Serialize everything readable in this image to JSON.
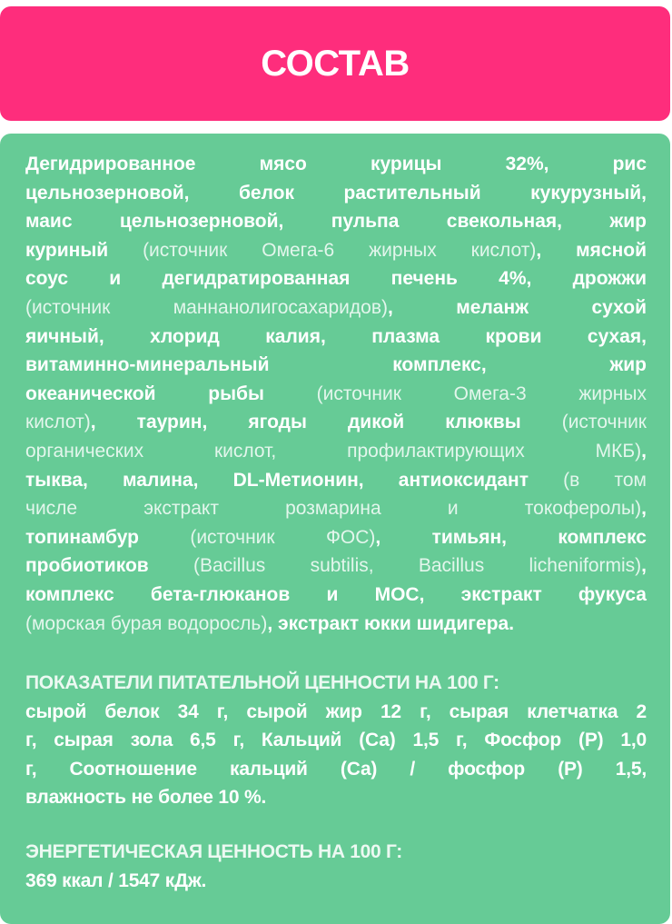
{
  "title": "СОСТАВ",
  "colors": {
    "header_bg": "#FE2D7C",
    "panel_bg": "#66CB96",
    "text": "#FFFFFF"
  },
  "composition_lines": [
    [
      {
        "t": "Дегидрированное мясо курицы 32%, рис",
        "b": true
      }
    ],
    [
      {
        "t": "цельнозерновой, белок растительный кукурузный,",
        "b": true
      }
    ],
    [
      {
        "t": "маис цельнозерновой, пульпа свекольная, жир",
        "b": true
      }
    ],
    [
      {
        "t": "куриный",
        "b": true
      },
      {
        "t": " (источник Омега-6 жирных кислот)",
        "b": false
      },
      {
        "t": ", мясной",
        "b": true
      }
    ],
    [
      {
        "t": "соус и дегидратированная печень 4%, дрожжи",
        "b": true
      }
    ],
    [
      {
        "t": "(источник маннанолигосахаридов)",
        "b": false
      },
      {
        "t": ", меланж сухой",
        "b": true
      }
    ],
    [
      {
        "t": "яичный, хлорид калия, плазма крови сухая,",
        "b": true
      }
    ],
    [
      {
        "t": "витаминно-минеральный комплекс, жир",
        "b": true
      }
    ],
    [
      {
        "t": "океанической рыбы",
        "b": true
      },
      {
        "t": " (источник Омега-3 жирных",
        "b": false
      }
    ],
    [
      {
        "t": "кислот)",
        "b": false
      },
      {
        "t": ", таурин, ягоды дикой клюквы",
        "b": true
      },
      {
        "t": " (источник",
        "b": false
      }
    ],
    [
      {
        "t": "органических кислот, профилактирующих МКБ)",
        "b": false
      },
      {
        "t": ",",
        "b": true
      }
    ],
    [
      {
        "t": "тыква, малина, DL-Метионин, антиоксидант",
        "b": true
      },
      {
        "t": " (в том",
        "b": false
      }
    ],
    [
      {
        "t": "числе экстракт розмарина и токоферолы)",
        "b": false
      },
      {
        "t": ",",
        "b": true
      }
    ],
    [
      {
        "t": "топинамбур",
        "b": true
      },
      {
        "t": " (источник ФОС)",
        "b": false
      },
      {
        "t": ", тимьян, комплекс",
        "b": true
      }
    ],
    [
      {
        "t": "пробиотиков",
        "b": true
      },
      {
        "t": " (Bacillus subtilis, Bacillus licheniformis)",
        "b": false
      },
      {
        "t": ",",
        "b": true
      }
    ],
    [
      {
        "t": "комплекс бета-глюканов и МОС,  экстракт фукуса",
        "b": true
      }
    ],
    [
      {
        "t": "(морская бурая водоросль)",
        "b": false
      },
      {
        "t": ", экстракт юкки шидигера.",
        "b": true
      }
    ]
  ],
  "nutrition": {
    "heading": "ПОКАЗАТЕЛИ ПИТАТЕЛЬНОЙ ЦЕННОСТИ НА 100 Г:",
    "lines": [
      "сырой белок 34 г, сырой жир 12 г, сырая клетчатка 2",
      "г, сырая зола 6,5 г, Кальций (Са) 1,5 г, Фосфор (Р) 1,0",
      "г, Соотношение кальций (Са) / фосфор (Р) 1,5,",
      "влажность не более 10 %."
    ]
  },
  "energy": {
    "heading": "ЭНЕРГЕТИЧЕСКАЯ ЦЕННОСТЬ НА 100 Г:",
    "value": "369 ккал / 1547 кДж."
  }
}
